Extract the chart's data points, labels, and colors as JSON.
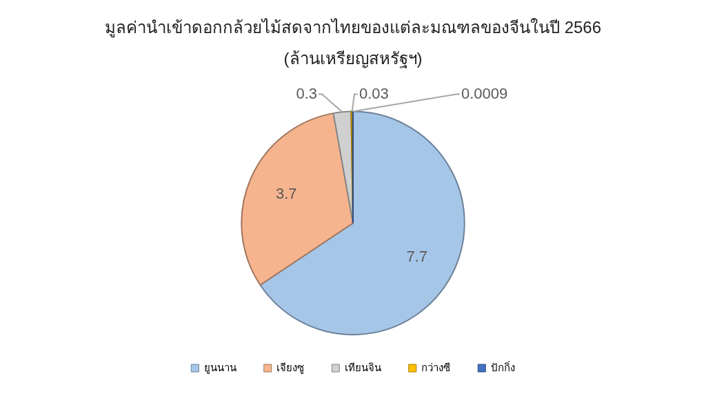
{
  "chart_data": {
    "type": "pie",
    "title": "มูลค่านำเข้าดอกกล้วยไม้สดจากไทยของแต่ละมณฑลของจีนในปี 2566",
    "subtitle": "(ล้านเหรียญสหรัฐฯ)",
    "categories": [
      "ยูนนาน",
      "เจียงซู",
      "เทียนจิน",
      "กว่างซี",
      "ปักกิ่ง"
    ],
    "values": [
      7.7,
      3.7,
      0.3,
      0.03,
      0.0009
    ],
    "colors": [
      "#a6c6e8",
      "#f5b48e",
      "#d0d0d0",
      "#ffc000",
      "#4472c4"
    ],
    "data_labels": true,
    "legend": "bottom"
  }
}
